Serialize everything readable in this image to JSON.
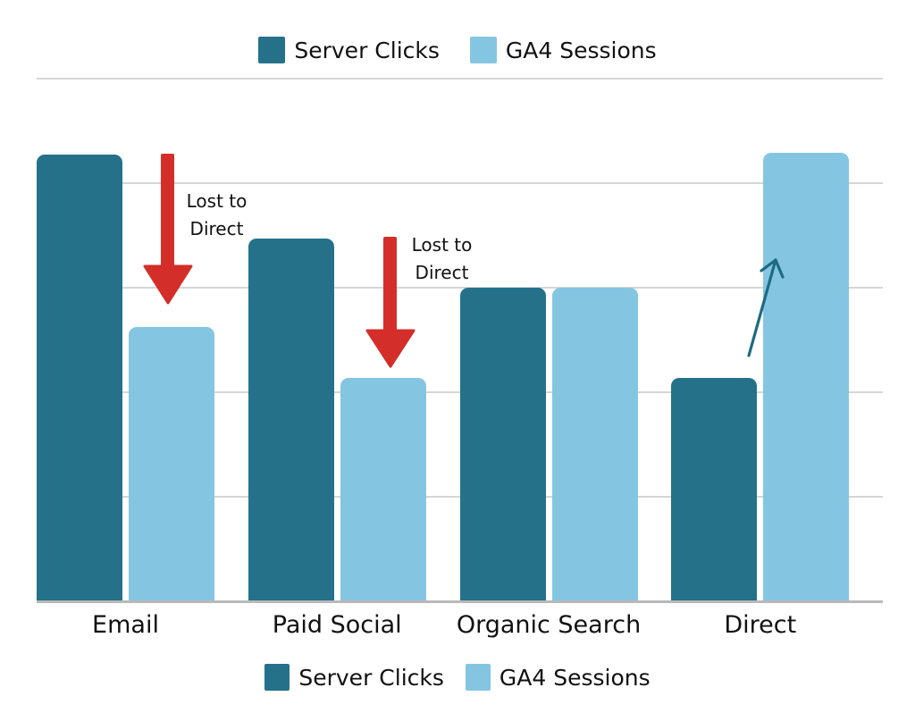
{
  "colors": {
    "server_clicks": "#25718A",
    "ga4_sessions": "#84C6E2",
    "loss_arrow": "#D42E2A",
    "gain_arrow": "#1F6A80",
    "gridline": "#D6D6D6"
  },
  "legend_top": {
    "items": [
      {
        "label": "Server Clicks",
        "color": "#25718A"
      },
      {
        "label": "GA4 Sessions",
        "color": "#84C6E2"
      }
    ]
  },
  "legend_bottom": {
    "items": [
      {
        "label": "Server Clicks",
        "color": "#25718A"
      },
      {
        "label": "GA4 Sessions",
        "color": "#84C6E2"
      }
    ]
  },
  "annotations": [
    {
      "text_line1": "Lost to",
      "text_line2": "Direct",
      "category": "Email",
      "type": "down-arrow"
    },
    {
      "text_line1": "Lost to",
      "text_line2": "Direct",
      "category": "Paid Social",
      "type": "down-arrow"
    },
    {
      "text_line1": "",
      "text_line2": "",
      "category": "Direct",
      "type": "up-arrow"
    }
  ],
  "chart_data": {
    "type": "bar",
    "title": "",
    "xlabel": "",
    "ylabel": "",
    "categories": [
      "Email",
      "Paid Social",
      "Organic Search",
      "Direct"
    ],
    "series": [
      {
        "name": "Server Clicks",
        "values": [
          4.27,
          3.47,
          3.0,
          2.14
        ]
      },
      {
        "name": "GA4 Sessions",
        "values": [
          2.62,
          2.14,
          3.0,
          4.29
        ]
      }
    ],
    "ylim": [
      0,
      5
    ],
    "y_units": "relative (gridline steps; no axis tick labels shown)",
    "grid": true,
    "gridlines": [
      1,
      2,
      3,
      4,
      5
    ],
    "legend_position": "top and bottom",
    "annotations": [
      {
        "category": "Email",
        "text": "Lost to Direct",
        "kind": "red down arrow"
      },
      {
        "category": "Paid Social",
        "text": "Lost to Direct",
        "kind": "red down arrow"
      },
      {
        "category": "Direct",
        "text": "",
        "kind": "teal up arrow"
      }
    ]
  }
}
